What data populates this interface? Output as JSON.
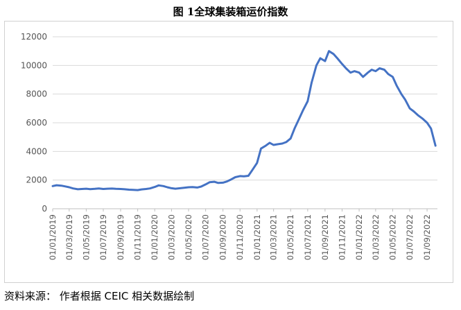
{
  "figure": {
    "title": "图 1全球集装箱运价指数",
    "source": "资料来源： 作者根据 CEIC 相关数据绘制"
  },
  "colors": {
    "line": "#4472C4",
    "grid": "#d9d9d9",
    "axis": "#bfbfbf"
  },
  "chart_data": {
    "type": "line",
    "title": "",
    "xlabel": "",
    "ylabel": "",
    "ylim": [
      0,
      12000
    ],
    "yticks": [
      0,
      2000,
      4000,
      6000,
      8000,
      10000,
      12000
    ],
    "ytick_labels": [
      "0",
      "2000",
      "4000",
      "6000",
      "8000",
      "10000",
      "12000"
    ],
    "xtick_labels": [
      "01/01/2019",
      "01/03/2019",
      "01/05/2019",
      "01/07/2019",
      "01/09/2019",
      "01/11/2019",
      "01/01/2020",
      "01/03/2020",
      "01/05/2020",
      "01/07/2020",
      "01/09/2020",
      "01/11/2020",
      "01/01/2021",
      "01/03/2021",
      "01/05/2021",
      "01/07/2021",
      "01/09/2021",
      "01/11/2021",
      "01/01/2022",
      "01/03/2022",
      "01/05/2022",
      "01/07/2022",
      "01/09/2022"
    ],
    "grid": true,
    "series": [
      {
        "x": [
          "2019-01-01",
          "2019-01-15",
          "2019-02-01",
          "2019-02-15",
          "2019-03-01",
          "2019-03-15",
          "2019-04-01",
          "2019-04-15",
          "2019-05-01",
          "2019-05-15",
          "2019-06-01",
          "2019-06-15",
          "2019-07-01",
          "2019-07-15",
          "2019-08-01",
          "2019-08-15",
          "2019-09-01",
          "2019-09-15",
          "2019-10-01",
          "2019-10-15",
          "2019-11-01",
          "2019-11-15",
          "2019-12-01",
          "2019-12-15",
          "2020-01-01",
          "2020-01-15",
          "2020-02-01",
          "2020-02-15",
          "2020-03-01",
          "2020-03-15",
          "2020-04-01",
          "2020-04-15",
          "2020-05-01",
          "2020-05-15",
          "2020-06-01",
          "2020-06-15",
          "2020-07-01",
          "2020-07-15",
          "2020-08-01",
          "2020-08-15",
          "2020-09-01",
          "2020-09-15",
          "2020-10-01",
          "2020-10-15",
          "2020-11-01",
          "2020-11-15",
          "2020-12-01",
          "2020-12-15",
          "2021-01-01",
          "2021-01-15",
          "2021-02-01",
          "2021-02-15",
          "2021-03-01",
          "2021-03-15",
          "2021-04-01",
          "2021-04-15",
          "2021-05-01",
          "2021-05-15",
          "2021-06-01",
          "2021-06-15",
          "2021-07-01",
          "2021-07-15",
          "2021-08-01",
          "2021-08-15",
          "2021-09-01",
          "2021-09-15",
          "2021-10-01",
          "2021-10-15",
          "2021-11-01",
          "2021-11-15",
          "2021-12-01",
          "2021-12-15",
          "2022-01-01",
          "2022-01-15",
          "2022-02-01",
          "2022-02-15",
          "2022-03-01",
          "2022-03-15",
          "2022-04-01",
          "2022-04-15",
          "2022-05-01",
          "2022-05-15",
          "2022-06-01",
          "2022-06-15",
          "2022-07-01",
          "2022-07-15",
          "2022-08-01",
          "2022-08-15",
          "2022-09-01",
          "2022-09-15",
          "2022-10-01"
        ],
        "values": [
          1580,
          1640,
          1610,
          1560,
          1500,
          1420,
          1360,
          1380,
          1400,
          1370,
          1390,
          1420,
          1380,
          1400,
          1410,
          1390,
          1380,
          1360,
          1330,
          1320,
          1300,
          1350,
          1380,
          1420,
          1520,
          1630,
          1580,
          1500,
          1430,
          1400,
          1430,
          1460,
          1500,
          1510,
          1480,
          1550,
          1700,
          1850,
          1880,
          1800,
          1820,
          1900,
          2050,
          2200,
          2280,
          2260,
          2300,
          2700,
          3200,
          4200,
          4400,
          4600,
          4450,
          4500,
          4550,
          4650,
          4900,
          5600,
          6300,
          6900,
          7500,
          8800,
          10000,
          10500,
          10300,
          11000,
          10800,
          10500,
          10100,
          9800,
          9500,
          9600,
          9500,
          9200,
          9500,
          9700,
          9600,
          9800,
          9700,
          9400,
          9200,
          8600,
          8000,
          7600,
          7000,
          6800,
          6500,
          6300,
          6000,
          5600,
          4400
        ]
      }
    ]
  }
}
